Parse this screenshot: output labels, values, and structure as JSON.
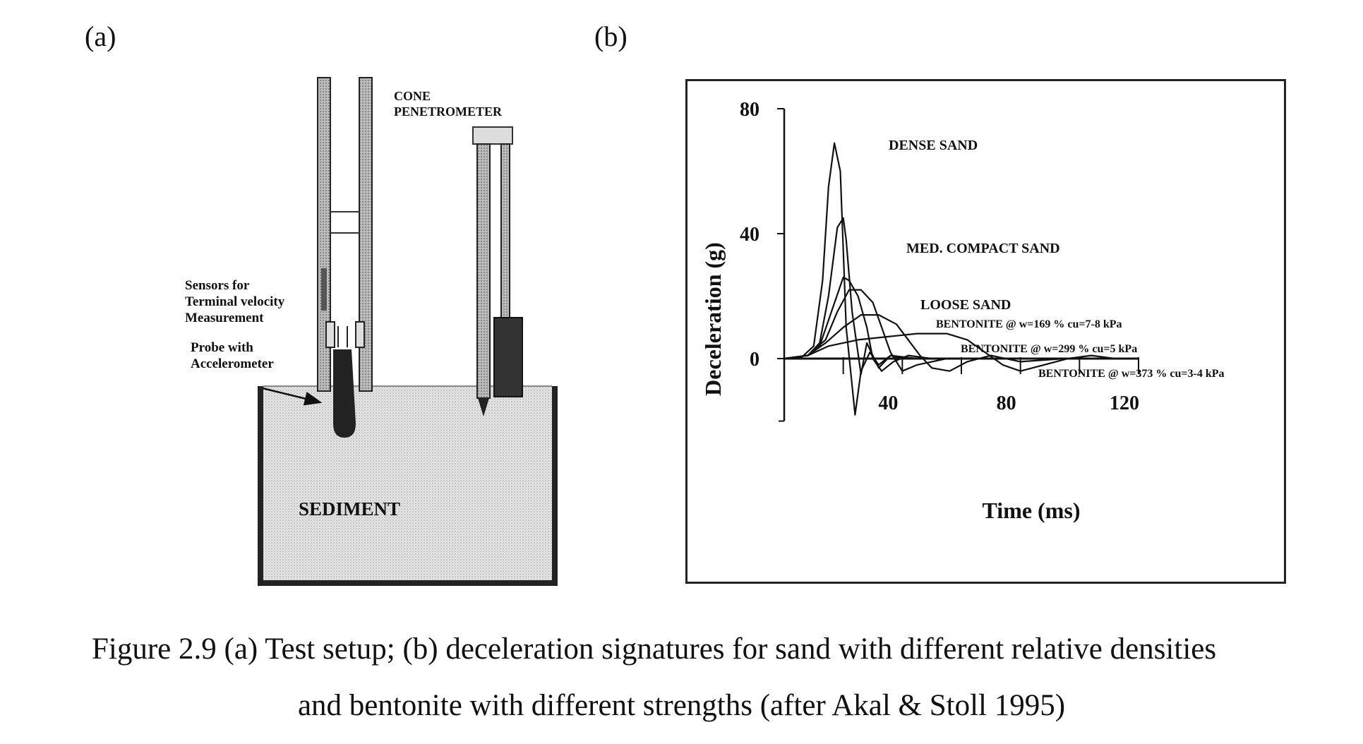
{
  "panels": {
    "a": "(a)",
    "b": "(b)"
  },
  "setup": {
    "cone_label_1": "CONE",
    "cone_label_2": "PENETROMETER",
    "sensors_label_1": "Sensors for",
    "sensors_label_2": "Terminal velocity",
    "sensors_label_3": "Measurement",
    "probe_label_1": "Probe with",
    "probe_label_2": "Accelerometer",
    "sediment_label": "SEDIMENT"
  },
  "chart_data": {
    "type": "line",
    "xlabel": "Time (ms)",
    "ylabel": "Deceleration (g)",
    "xlim": [
      0,
      120
    ],
    "ylim": [
      -20,
      80
    ],
    "x_ticks": [
      "40",
      "80",
      "120"
    ],
    "y_ticks": [
      "80",
      "40",
      "0"
    ],
    "series": [
      {
        "name": "DENSE SAND",
        "x": [
          0,
          6,
          10,
          13,
          15,
          17,
          19,
          21,
          24,
          26,
          29,
          32,
          36,
          45,
          60,
          80,
          100,
          112
        ],
        "y": [
          0,
          0.5,
          4,
          25,
          55,
          69,
          60,
          10,
          -18,
          -4,
          2,
          -2,
          1,
          0,
          0,
          0,
          0,
          0
        ]
      },
      {
        "name": "MED. COMPACT SAND",
        "x": [
          0,
          8,
          12,
          15,
          18,
          20,
          21,
          23,
          26,
          28,
          32,
          36,
          40,
          50,
          70,
          90,
          112
        ],
        "y": [
          0,
          1,
          5,
          20,
          42,
          45,
          38,
          15,
          -5,
          5,
          -3,
          1,
          0,
          0,
          0,
          0,
          0
        ]
      },
      {
        "name": "LOOSE SAND",
        "x": [
          0,
          8,
          12,
          16,
          20,
          22,
          25,
          28,
          30,
          33,
          37,
          42,
          50,
          70,
          90,
          112
        ],
        "y": [
          0,
          1,
          4,
          15,
          26,
          25,
          20,
          10,
          0,
          -4,
          -1,
          1,
          0,
          0,
          0,
          0
        ]
      },
      {
        "name": "BENTONITE @ w=169 % cu=7-8 kPa",
        "x": [
          0,
          8,
          14,
          18,
          22,
          26,
          30,
          33,
          36,
          40,
          45,
          55,
          75,
          95,
          112
        ],
        "y": [
          0,
          1,
          6,
          15,
          22,
          22,
          18,
          10,
          2,
          -4,
          -2,
          0,
          0,
          0,
          0
        ]
      },
      {
        "name": "BENTONITE @ w=299 % cu=5 kPa",
        "x": [
          0,
          8,
          14,
          20,
          26,
          32,
          38,
          42,
          46,
          50,
          56,
          62,
          70,
          80,
          95,
          112
        ],
        "y": [
          0,
          1,
          5,
          10,
          14,
          14,
          11,
          6,
          1,
          -3,
          -4,
          -1,
          1,
          -1,
          0,
          0
        ]
      },
      {
        "name": "BENTONITE @ w=373 % cu=3-4 kPa",
        "x": [
          0,
          8,
          15,
          25,
          35,
          45,
          55,
          62,
          68,
          74,
          80,
          88,
          96,
          104,
          112
        ],
        "y": [
          0,
          1,
          4,
          6,
          7,
          8,
          8,
          6,
          2,
          -2,
          -4,
          -2,
          0,
          1,
          0
        ]
      }
    ]
  },
  "caption": {
    "line1": "Figure 2.9 (a) Test setup; (b) deceleration signatures for sand with different relative densities",
    "line2": "and bentonite with different strengths (after Akal & Stoll 1995)"
  }
}
